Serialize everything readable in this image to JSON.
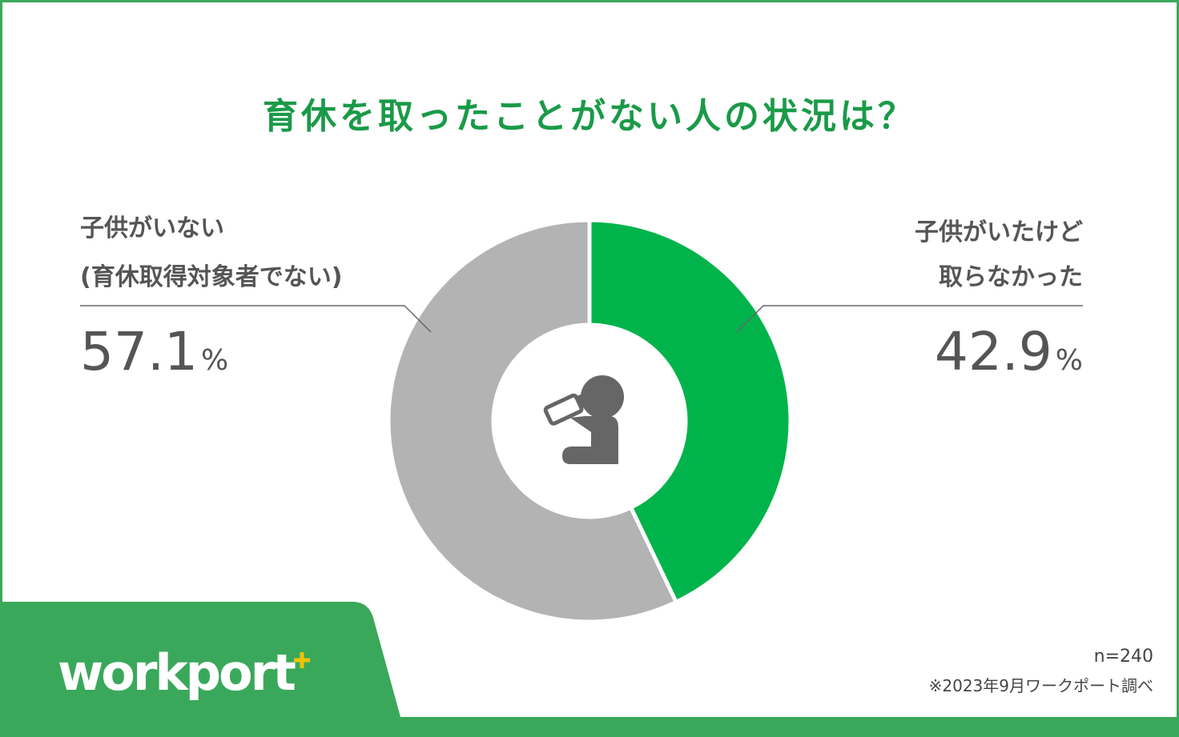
{
  "chart_data": {
    "type": "donut",
    "title": "育休を取ったことがない人の状況は？",
    "categories": [
      [
        "子供がいない",
        "(育休取得対象者でない)"
      ],
      [
        "子供がいたけど",
        "取らなかった"
      ]
    ],
    "values": [
      57.1,
      42.9
    ],
    "value_labels": [
      "57.1%",
      "42.9%"
    ],
    "colors": [
      "#b3b3b3",
      "#00b44b"
    ],
    "direction": "counterclockwise",
    "start": "top"
  },
  "footer": {
    "logo": "workport",
    "sample": "n=240",
    "source": "※2023年9月ワークポート調べ"
  }
}
